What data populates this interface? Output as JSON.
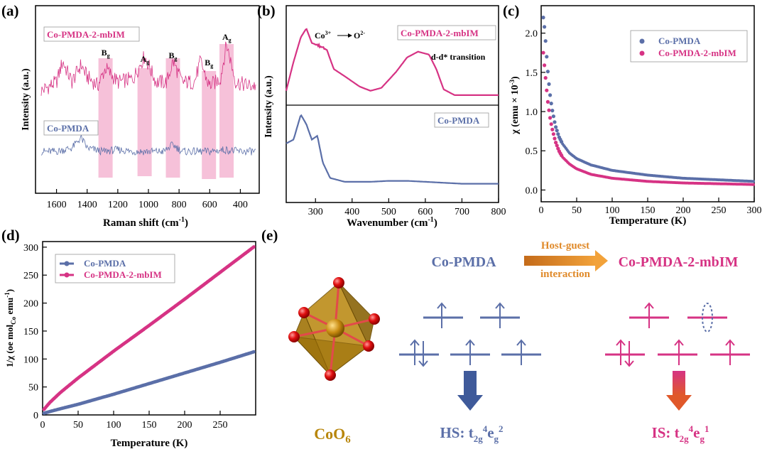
{
  "colors": {
    "pink": "#d63384",
    "blue": "#5b6fa8",
    "gold": "#b8860b",
    "orange": "#e08a2a",
    "shade": "#f4b6d2"
  },
  "panels": {
    "a": {
      "letter": "(a)",
      "xlabel": "Raman shift (cm",
      "xlabel_sup": "-1",
      "xlabel_end": ")",
      "ylabel": "Intensity (a.u.)",
      "legend_top": "Co-PMDA-2-mbIM",
      "legend_bottom": "Co-PMDA",
      "peaks": [
        {
          "label": "B",
          "sub": "g",
          "x": 1280
        },
        {
          "label": "A",
          "sub": "g",
          "x": 1025
        },
        {
          "label": "B",
          "sub": "g",
          "x": 840
        },
        {
          "label": "B",
          "sub": "g",
          "x": 605
        },
        {
          "label": "A",
          "sub": "g",
          "x": 490
        }
      ],
      "xticks": [
        "1600",
        "1400",
        "1200",
        "1000",
        "800",
        "600",
        "400"
      ]
    },
    "b": {
      "letter": "(b)",
      "xlabel": "Wavenumber (cm",
      "xlabel_sup": "-1",
      "xlabel_end": ")",
      "ylabel": "Intensity (a.u.)",
      "legend_top": "Co-PMDA-2-mbIM",
      "legend_bottom": "Co-PMDA",
      "ann1_a": "Co",
      "ann1_sup": "3+",
      "ann1_b": "O",
      "ann1_sup2": "2-",
      "ann2": "d-d* transition",
      "xticks": [
        "300",
        "400",
        "500",
        "600",
        "700",
        "800"
      ]
    },
    "c": {
      "letter": "(c)",
      "xlabel": "Temperature (K)",
      "ylabel_a": "χ (emu × 10",
      "ylabel_sup": "-3",
      "ylabel_end": ")",
      "legend": [
        "Co-PMDA",
        "Co-PMDA-2-mbIM"
      ],
      "xticks": [
        "0",
        "50",
        "100",
        "150",
        "200",
        "250",
        "300"
      ],
      "yticks": [
        "0.0",
        "0.5",
        "1.0",
        "1.5",
        "2.0"
      ]
    },
    "d": {
      "letter": "(d)",
      "xlabel": "Temperature (K)",
      "ylabel_a": "1/χ (oe mol",
      "ylabel_sub": "Co",
      "ylabel_b": " emu",
      "ylabel_sup": "-1",
      "ylabel_end": ")",
      "legend": [
        "Co-PMDA",
        "Co-PMDA-2-mbIM"
      ],
      "xticks": [
        "0",
        "50",
        "100",
        "150",
        "200",
        "250"
      ],
      "yticks": [
        "0",
        "50",
        "100",
        "150",
        "200",
        "250",
        "300"
      ]
    },
    "e": {
      "letter": "(e)",
      "left_name": "Co-PMDA",
      "right_name": "Co-PMDA-2-mbIM",
      "arrow_l1": "Host-guest",
      "arrow_l2": "interaction",
      "coo_a": "CoO",
      "coo_sub": "6",
      "hs_a": "HS: t",
      "hs_s1": "2g",
      "hs_p1": "4",
      "hs_b": "e",
      "hs_s2": "g",
      "hs_p2": "2",
      "is_a": "IS: t",
      "is_s1": "2g",
      "is_p1": "4",
      "is_b": "e",
      "is_s2": "g",
      "is_p2": "1"
    }
  },
  "chart_data": [
    {
      "type": "line",
      "panel": "a",
      "title": "",
      "xlabel": "Raman shift (cm-1)",
      "ylabel": "Intensity (a.u.)",
      "xlim": [
        1700,
        300
      ],
      "series": [
        {
          "name": "Co-PMDA-2-mbIM",
          "x": [
            1700,
            1600,
            1560,
            1500,
            1440,
            1400,
            1330,
            1280,
            1200,
            1100,
            1025,
            950,
            880,
            840,
            780,
            700,
            660,
            605,
            560,
            530,
            490,
            430,
            350,
            300
          ],
          "y": [
            0.55,
            0.6,
            0.72,
            0.6,
            0.7,
            0.63,
            0.58,
            0.68,
            0.6,
            0.62,
            0.75,
            0.6,
            0.6,
            0.72,
            0.6,
            0.6,
            0.72,
            0.58,
            0.6,
            0.62,
            0.82,
            0.6,
            0.58,
            0.58
          ]
        },
        {
          "name": "Co-PMDA",
          "x": [
            1700,
            1600,
            1500,
            1440,
            1400,
            1300,
            1200,
            1100,
            1000,
            900,
            840,
            780,
            700,
            600,
            500,
            400,
            300
          ],
          "y": [
            0.2,
            0.2,
            0.22,
            0.28,
            0.22,
            0.2,
            0.21,
            0.2,
            0.2,
            0.2,
            0.24,
            0.2,
            0.2,
            0.2,
            0.21,
            0.2,
            0.2
          ]
        }
      ]
    },
    {
      "type": "line",
      "panel": "b",
      "title": "",
      "xlabel": "Wavenumber (cm-1)",
      "ylabel": "Intensity (a.u.)",
      "xlim": [
        220,
        800
      ],
      "series": [
        {
          "name": "Co-PMDA-2-mbIM",
          "x": [
            220,
            240,
            260,
            275,
            290,
            310,
            330,
            350,
            380,
            420,
            450,
            480,
            520,
            550,
            580,
            610,
            630,
            650,
            680,
            720,
            800
          ],
          "y": [
            0.55,
            0.75,
            0.92,
            0.98,
            0.88,
            0.86,
            0.84,
            0.7,
            0.65,
            0.58,
            0.55,
            0.57,
            0.68,
            0.78,
            0.82,
            0.8,
            0.7,
            0.56,
            0.52,
            0.52,
            0.52
          ]
        },
        {
          "name": "Co-PMDA",
          "x": [
            220,
            240,
            260,
            275,
            290,
            305,
            320,
            340,
            380,
            450,
            500,
            550,
            600,
            650,
            700,
            800
          ],
          "y": [
            0.28,
            0.3,
            0.43,
            0.38,
            0.3,
            0.32,
            0.18,
            0.1,
            0.08,
            0.08,
            0.085,
            0.085,
            0.08,
            0.075,
            0.07,
            0.07
          ]
        }
      ]
    },
    {
      "type": "scatter",
      "panel": "c",
      "title": "",
      "xlabel": "Temperature (K)",
      "ylabel": "χ (emu × 10-3)",
      "xlim": [
        0,
        300
      ],
      "ylim": [
        -0.15,
        2.35
      ],
      "series": [
        {
          "name": "Co-PMDA",
          "x": [
            3,
            5,
            7,
            9,
            12,
            15,
            20,
            25,
            30,
            40,
            50,
            70,
            100,
            150,
            200,
            250,
            300
          ],
          "y": [
            2.2,
            2.05,
            1.8,
            1.55,
            1.25,
            1.05,
            0.82,
            0.68,
            0.59,
            0.47,
            0.4,
            0.32,
            0.25,
            0.19,
            0.15,
            0.13,
            0.11
          ]
        },
        {
          "name": "Co-PMDA-2-mbIM",
          "x": [
            3,
            5,
            7,
            9,
            12,
            15,
            20,
            25,
            30,
            40,
            50,
            70,
            100,
            150,
            200,
            250,
            300
          ],
          "y": [
            1.75,
            1.55,
            1.35,
            1.15,
            0.95,
            0.8,
            0.62,
            0.5,
            0.42,
            0.33,
            0.27,
            0.2,
            0.15,
            0.11,
            0.09,
            0.08,
            0.07
          ]
        }
      ]
    },
    {
      "type": "scatter",
      "panel": "d",
      "title": "",
      "xlabel": "Temperature (K)",
      "ylabel": "1/χ (oe molCo emu-1)",
      "xlim": [
        0,
        300
      ],
      "ylim": [
        0,
        310
      ],
      "series": [
        {
          "name": "Co-PMDA",
          "x": [
            2,
            10,
            25,
            50,
            100,
            150,
            200,
            250,
            298
          ],
          "y": [
            3,
            6,
            11,
            19,
            37,
            56,
            75,
            94,
            113
          ]
        },
        {
          "name": "Co-PMDA-2-mbIM",
          "x": [
            2,
            10,
            25,
            50,
            100,
            150,
            200,
            250,
            298
          ],
          "y": [
            10,
            22,
            40,
            66,
            114,
            160,
            207,
            255,
            301
          ]
        }
      ]
    }
  ]
}
